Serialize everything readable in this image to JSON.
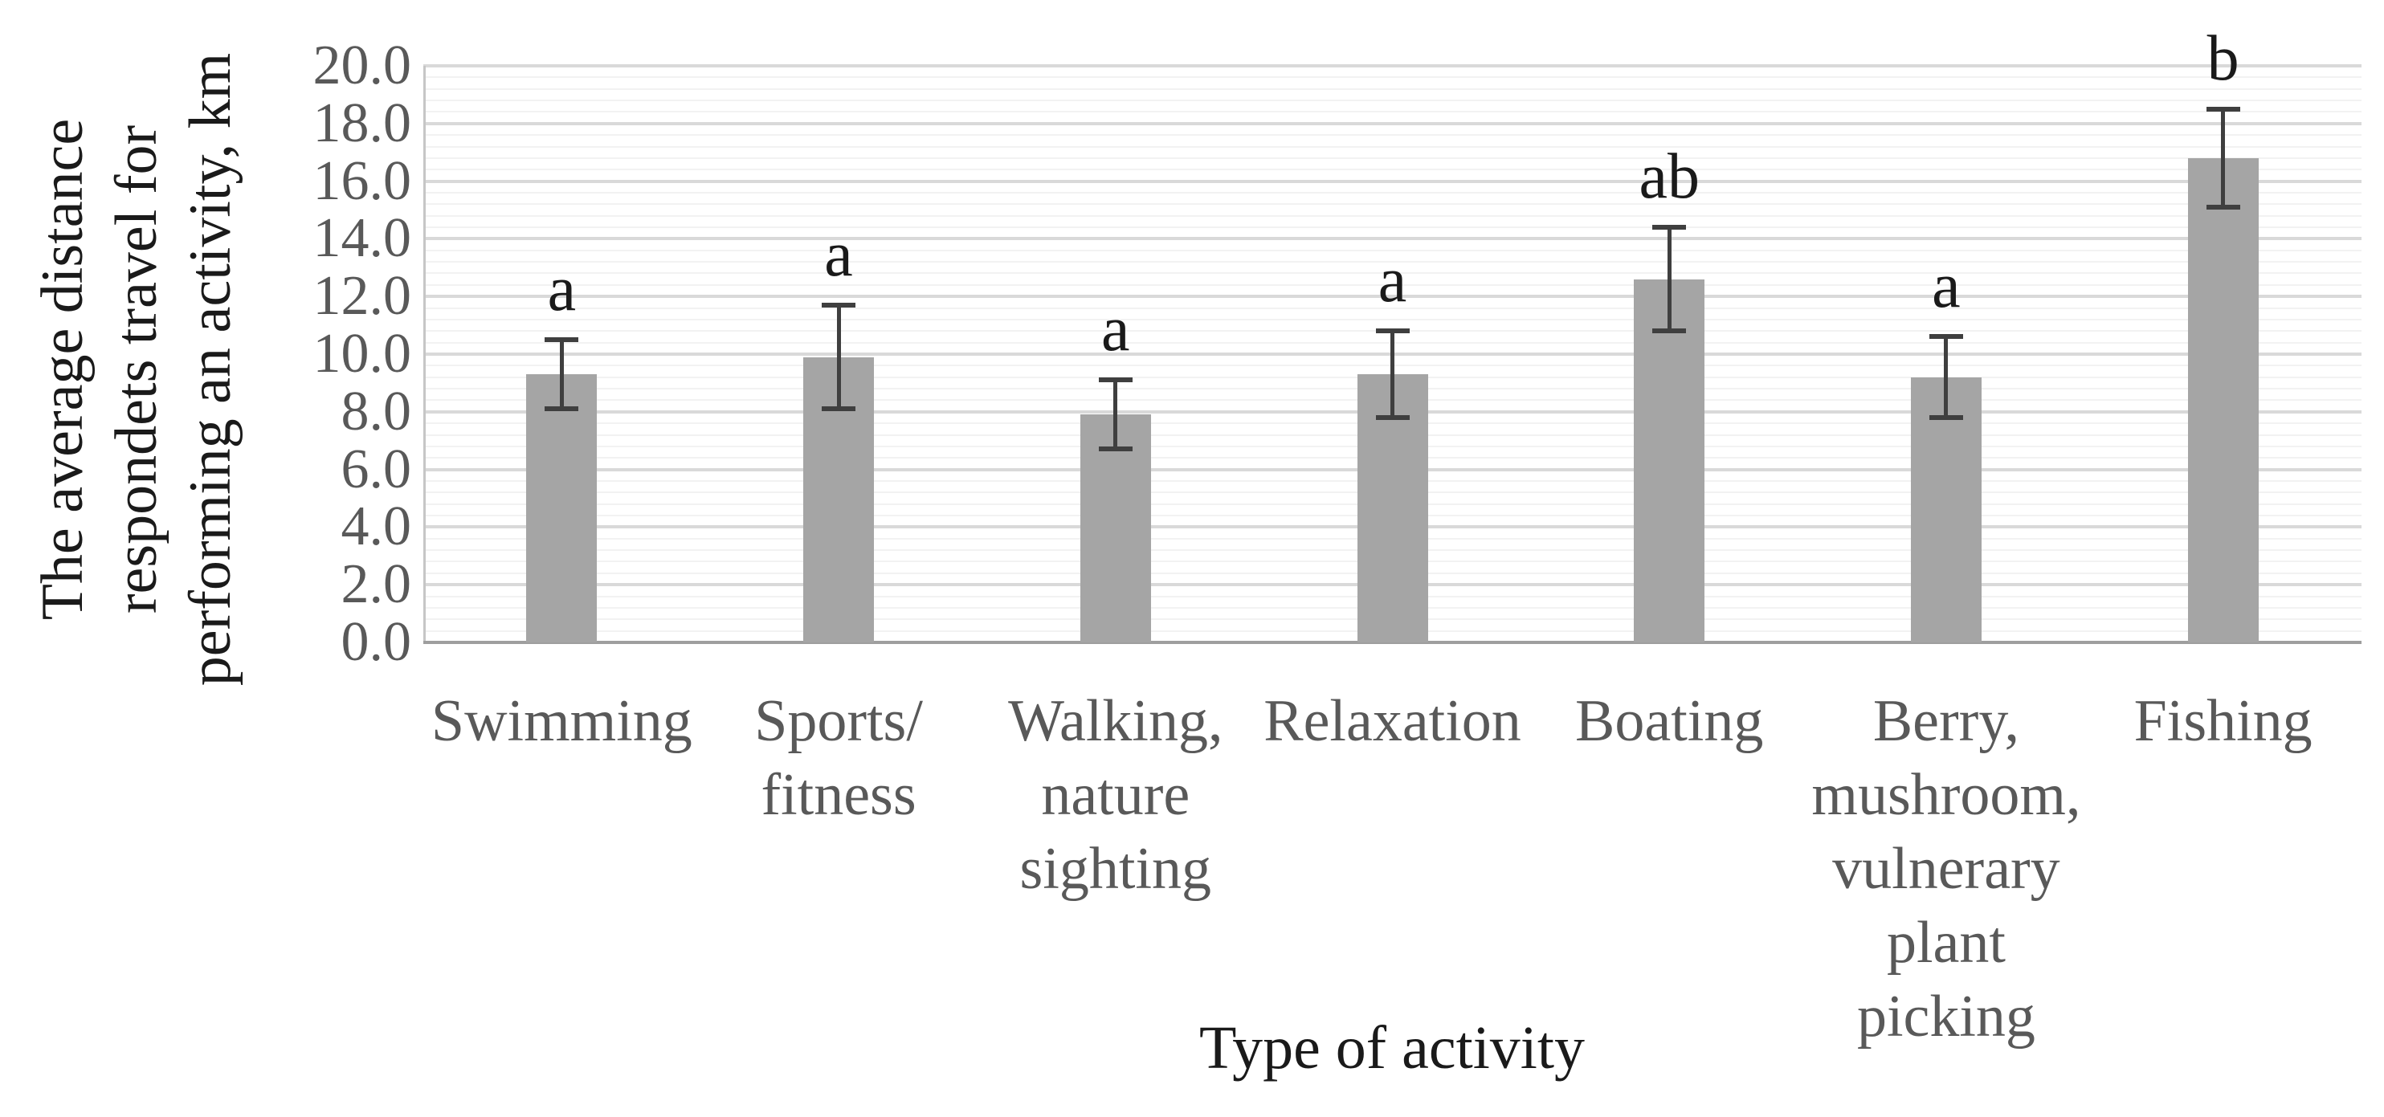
{
  "chart_data": {
    "type": "bar",
    "title": "",
    "xlabel": "Type of activity",
    "ylabel": "The average distance respondets travel for performing an activity, km",
    "ylabel_lines": [
      "The average distance",
      "respondets travel for",
      "performing an activity, km"
    ],
    "categories": [
      "Swimming",
      "Sports/ fitness",
      "Walking, nature sighting",
      "Relaxation",
      "Boating",
      "Berry, mushroom, vulnerary plant picking",
      "Fishing"
    ],
    "category_lines": [
      [
        "Swimming"
      ],
      [
        "Sports/",
        "fitness"
      ],
      [
        "Walking,",
        "nature",
        "sighting"
      ],
      [
        "Relaxation"
      ],
      [
        "Boating"
      ],
      [
        "Berry,",
        "mushroom,",
        "vulnerary",
        "plant",
        "picking"
      ],
      [
        "Fishing"
      ]
    ],
    "values": [
      9.3,
      9.9,
      7.9,
      9.3,
      12.6,
      9.2,
      16.8
    ],
    "errors": [
      1.2,
      1.8,
      1.2,
      1.5,
      1.8,
      1.4,
      1.7
    ],
    "sig_letters": [
      "a",
      "a",
      "a",
      "a",
      "ab",
      "a",
      "b"
    ],
    "ylim": [
      0,
      20
    ],
    "y_major_step": 2,
    "y_minor_step": 0.4,
    "y_tick_labels": [
      "0.0",
      "2.0",
      "4.0",
      "6.0",
      "8.0",
      "10.0",
      "12.0",
      "14.0",
      "16.0",
      "18.0",
      "20.0"
    ],
    "grid": "horizontal major+minor",
    "legend": "none",
    "colors": {
      "background": "#ffffff",
      "bar": "#a5a5a5",
      "error_bar": "#3f3f3f",
      "major_grid": "#d9d9d9",
      "minor_grid": "#f2f2f2",
      "x_axis_line": "#9e9e9e",
      "y_axis_line": "#c6c6c6",
      "tick_label": "#595959",
      "category_label": "#595959",
      "sig_letter": "#1a1a1a",
      "axis_title": "#1a1a1a"
    }
  }
}
